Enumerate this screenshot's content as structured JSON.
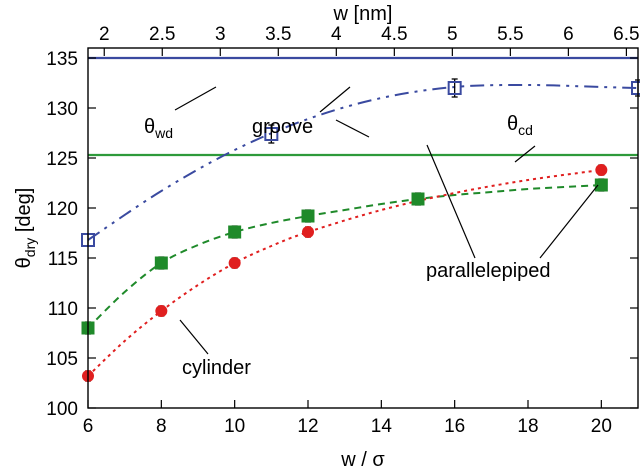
{
  "chart_data": {
    "type": "scatter",
    "xlabel": "w / σ",
    "x2label": "w [nm]",
    "ylabel_main": "θ",
    "ylabel_sub": "dry",
    "ylabel_unit": " [deg]",
    "xlim": [
      6,
      21
    ],
    "ylim": [
      100,
      136
    ],
    "x2lim": [
      1.86,
      6.6
    ],
    "x_ticks": [
      6,
      8,
      10,
      12,
      14,
      16,
      18,
      20
    ],
    "y_ticks": [
      100,
      105,
      110,
      115,
      120,
      125,
      130,
      135
    ],
    "x2_ticks": [
      2,
      2.5,
      3,
      3.5,
      4,
      4.5,
      5,
      5.5,
      6,
      6.5
    ],
    "grid": false,
    "legend": "none",
    "series": [
      {
        "name": "groove",
        "color": "#3a4aa0",
        "marker": "open-square",
        "line": "dash-dot",
        "x": [
          6,
          11,
          16,
          21
        ],
        "y": [
          116.8,
          127.4,
          132.0,
          132.0
        ],
        "err": [
          0.6,
          0.9,
          0.9,
          0.8
        ],
        "fit": [
          [
            6,
            116.8
          ],
          [
            8,
            121.7
          ],
          [
            10,
            125.8
          ],
          [
            12,
            128.9
          ],
          [
            14,
            131.0
          ],
          [
            16,
            132.1
          ],
          [
            18,
            132.3
          ],
          [
            20,
            132.1
          ],
          [
            21,
            132.0
          ]
        ]
      },
      {
        "name": "parallelepiped",
        "color": "#1f8a2a",
        "marker": "filled-square",
        "line": "dashed",
        "x": [
          6,
          8,
          10,
          12,
          15,
          20
        ],
        "y": [
          108.0,
          114.5,
          117.6,
          119.2,
          120.9,
          122.3
        ],
        "err": [
          0.6,
          0.6,
          0.6,
          0.6,
          0.6,
          0.6
        ],
        "fit": [
          [
            6,
            108.0
          ],
          [
            7,
            111.6
          ],
          [
            8,
            114.5
          ],
          [
            9,
            116.3
          ],
          [
            10,
            117.6
          ],
          [
            11,
            118.5
          ],
          [
            12,
            119.2
          ],
          [
            13,
            119.8
          ],
          [
            14,
            120.4
          ],
          [
            15,
            120.9
          ],
          [
            16,
            121.3
          ],
          [
            17,
            121.6
          ],
          [
            18,
            121.9
          ],
          [
            19,
            122.1
          ],
          [
            20,
            122.3
          ]
        ]
      },
      {
        "name": "cylinder",
        "color": "#e01f1f",
        "marker": "filled-circle",
        "line": "dotted",
        "x": [
          6,
          8,
          10,
          12,
          20
        ],
        "y": [
          103.2,
          109.7,
          114.5,
          117.6,
          123.8
        ],
        "err": [
          0.5,
          0.5,
          0.5,
          0.5,
          0.5
        ],
        "fit": [
          [
            6,
            103.2
          ],
          [
            7,
            106.7
          ],
          [
            8,
            109.7
          ],
          [
            9,
            112.3
          ],
          [
            10,
            114.5
          ],
          [
            11,
            116.2
          ],
          [
            12,
            117.6
          ],
          [
            14,
            119.8
          ],
          [
            16,
            121.5
          ],
          [
            18,
            122.8
          ],
          [
            20,
            123.8
          ]
        ]
      }
    ],
    "reference_lines": [
      {
        "name": "θwd",
        "y": 135.0,
        "color": "#3a4aa0"
      },
      {
        "name": "θcd",
        "y": 125.3,
        "color": "#2e9a3a"
      }
    ],
    "annotations": {
      "theta_wd": {
        "main": "θ",
        "sub": "wd"
      },
      "theta_cd": {
        "main": "θ",
        "sub": "cd"
      },
      "groove": "groove",
      "parallelepiped": "parallelepiped",
      "cylinder": "cylinder"
    }
  }
}
